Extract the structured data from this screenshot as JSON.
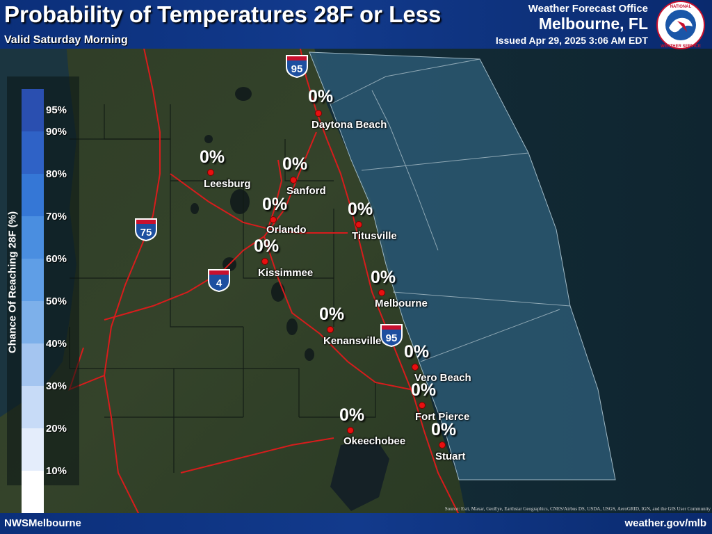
{
  "header": {
    "title": "Probability of Temperatures 28F or Less",
    "subtitle": "Valid Saturday Morning",
    "office_label": "Weather Forecast Office",
    "office_name": "Melbourne, FL",
    "issued": "Issued Apr 29, 2025 3:06 AM EDT",
    "logo_text": "NATIONAL WEATHER SERVICE"
  },
  "legend": {
    "title": "Chance Of Reaching 28F (%)",
    "ticks": [
      "95%",
      "90%",
      "80%",
      "70%",
      "60%",
      "50%",
      "40%",
      "30%",
      "20%",
      "10%"
    ],
    "colors": [
      "#2a4fb0",
      "#2f62c6",
      "#3577d6",
      "#4a8ee0",
      "#5f9ee6",
      "#7db0ea",
      "#a4c5f0",
      "#c7dbf7",
      "#e4edfb",
      "#ffffff"
    ]
  },
  "cities": [
    {
      "name": "Daytona Beach",
      "value": "0%"
    },
    {
      "name": "Leesburg",
      "value": "0%"
    },
    {
      "name": "Sanford",
      "value": "0%"
    },
    {
      "name": "Orlando",
      "value": "0%"
    },
    {
      "name": "Titusville",
      "value": "0%"
    },
    {
      "name": "Kissimmee",
      "value": "0%"
    },
    {
      "name": "Melbourne",
      "value": "0%"
    },
    {
      "name": "Kenansville",
      "value": "0%"
    },
    {
      "name": "Vero Beach",
      "value": "0%"
    },
    {
      "name": "Fort Pierce",
      "value": "0%"
    },
    {
      "name": "Okeechobee",
      "value": "0%"
    },
    {
      "name": "Stuart",
      "value": "0%"
    }
  ],
  "highways": [
    {
      "label": "INTERSTATE",
      "number": "95"
    },
    {
      "label": "INTERSTATE",
      "number": "75"
    },
    {
      "label": "INTERSTATE",
      "number": "4"
    },
    {
      "label": "INTERSTATE",
      "number": "95"
    }
  ],
  "colors": {
    "header_blue": "#123a8c",
    "city_dot": "#e81010",
    "roads": "#e02020",
    "marine_zone": "#2e5a78"
  },
  "source": "Source: Esri, Maxar, GeoEye, Earthstar Geographics, CNES/Airbus DS, USDA, USGS, AeroGRID, IGN, and the GIS User Community",
  "footer": {
    "left": "NWSMelbourne",
    "right": "weather.gov/mlb"
  }
}
